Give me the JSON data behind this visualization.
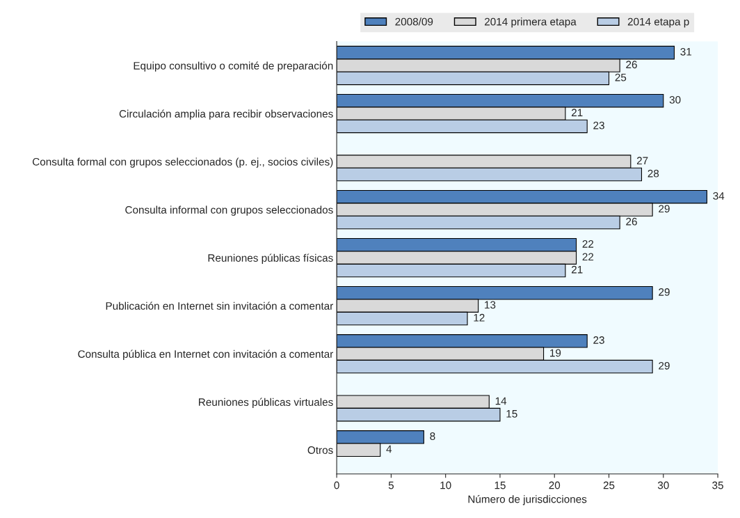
{
  "chart_data": {
    "type": "bar",
    "orientation": "horizontal",
    "xlabel": "Número de jurisdicciones",
    "categories": [
      "Equipo consultivo o comité de preparación",
      "Circulación amplia para recibir observaciones",
      "Consulta formal con grupos seleccionados (p. ej., socios civiles)",
      "Consulta informal con grupos seleccionados",
      "Reuniones públicas físicas",
      "Publicación en Internet sin invitación a comentar",
      "Consulta pública en Internet con invitación a comentar",
      "Reuniones públicas virtuales",
      "Otros"
    ],
    "series": [
      {
        "name": "2008/09",
        "color": "#4f81bd",
        "values": [
          31,
          30,
          null,
          34,
          22,
          29,
          23,
          null,
          8
        ]
      },
      {
        "name": "2014 primera etapa",
        "color": "#d9d9d9",
        "values": [
          26,
          21,
          27,
          29,
          22,
          13,
          19,
          14,
          4
        ]
      },
      {
        "name": "2014 etapa p",
        "color": "#b9cde5",
        "values": [
          25,
          23,
          28,
          26,
          21,
          12,
          29,
          15,
          null
        ]
      }
    ],
    "xlim": [
      0,
      35
    ],
    "xticks": [
      0,
      5,
      10,
      15,
      20,
      25,
      30,
      35
    ],
    "data_labels": true,
    "grid": false,
    "legend": "top"
  }
}
